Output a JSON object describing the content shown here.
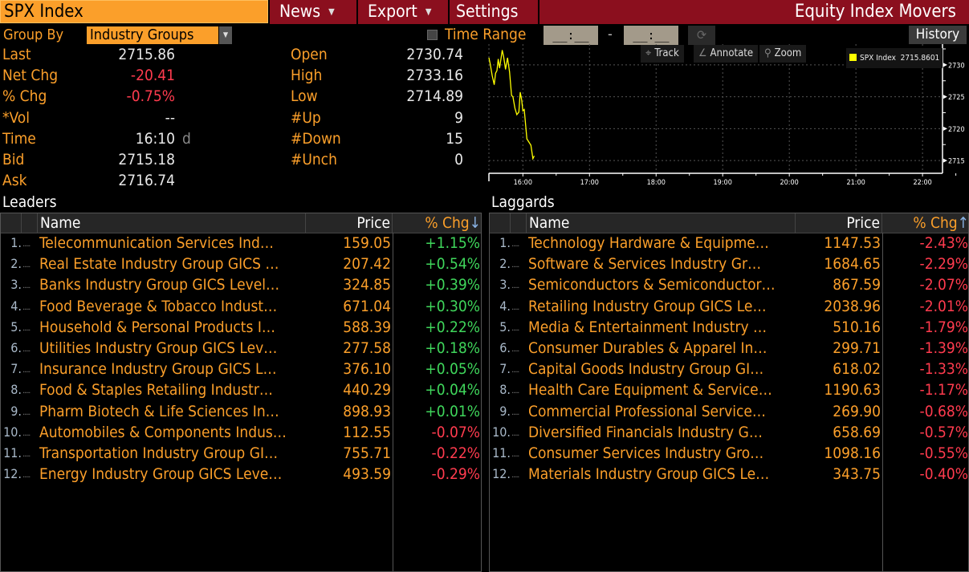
{
  "toolbar": {
    "ticker": "SPX Index",
    "news_label": "News",
    "export_label": "Export",
    "settings_label": "Settings",
    "title": "Equity Index Movers"
  },
  "filters": {
    "group_by_label": "Group By",
    "group_by_value": "Industry Groups",
    "time_range_label": "Time Range",
    "time_range_checked": false,
    "time_from": "__:__",
    "time_separator": "-",
    "time_to": "__:__",
    "history_label": "History"
  },
  "stats_left": [
    {
      "label": "Last",
      "value": "2715.86",
      "tone": "normal"
    },
    {
      "label": "Net Chg",
      "value": "-20.41",
      "tone": "neg"
    },
    {
      "label": "% Chg",
      "value": "-0.75%",
      "tone": "neg"
    },
    {
      "label": "*Vol",
      "value": "--",
      "tone": "normal"
    },
    {
      "label": "Time",
      "value": "16:10",
      "suffix": "d",
      "tone": "normal"
    },
    {
      "label": "Bid",
      "value": "2715.18",
      "tone": "normal"
    },
    {
      "label": "Ask",
      "value": "2716.74",
      "tone": "normal"
    }
  ],
  "stats_right": [
    {
      "label": "Open",
      "value": "2730.74"
    },
    {
      "label": "High",
      "value": "2733.16"
    },
    {
      "label": "Low",
      "value": "2714.89"
    },
    {
      "label": "#Up",
      "value": "9"
    },
    {
      "label": "#Down",
      "value": "15"
    },
    {
      "label": "#Unch",
      "value": "0"
    }
  ],
  "chart_tools": {
    "track": "Track",
    "annotate": "Annotate",
    "zoom": "Zoom"
  },
  "chart_data": {
    "type": "line",
    "title": "",
    "legend": {
      "name": "SPX Index",
      "value": "2715.8601",
      "placement": "top-right"
    },
    "xlabel": "",
    "ylabel": "",
    "x_ticks": [
      "16:00",
      "17:00",
      "18:00",
      "19:00",
      "20:00",
      "21:00",
      "22:00"
    ],
    "x_tick_values": [
      16,
      17,
      18,
      19,
      20,
      21,
      22
    ],
    "xlim": [
      15.49,
      22.3
    ],
    "y_ticks": [
      2715,
      2720,
      2725,
      2730
    ],
    "ylim": [
      2713,
      2733
    ],
    "grid": true,
    "series": [
      {
        "name": "SPX Index",
        "color": "#ffff00",
        "x": [
          15.49,
          15.51,
          15.54,
          15.57,
          15.59,
          15.61,
          15.63,
          15.65,
          15.69,
          15.71,
          15.74,
          15.77,
          15.8,
          15.83,
          15.85,
          15.88,
          15.91,
          15.94,
          15.96,
          15.98,
          16.0,
          16.02,
          16.06,
          16.12,
          16.15,
          16.17
        ],
        "y": [
          2731.1,
          2730.1,
          2728.3,
          2726.9,
          2728.7,
          2729.1,
          2730.9,
          2729.5,
          2732.3,
          2731.3,
          2729.3,
          2731.1,
          2728.9,
          2725.2,
          2725.0,
          2723.2,
          2722.2,
          2722.6,
          2725.7,
          2724.6,
          2722.8,
          2723.0,
          2718.4,
          2717.4,
          2715.3,
          2715.7
        ]
      }
    ]
  },
  "leaders": {
    "title": "Leaders",
    "columns": {
      "name": "Name",
      "price": "Price",
      "chg": "% Chg",
      "sort_icon": "↓"
    },
    "rows": [
      {
        "rank": "1.",
        "name": "Telecommunication Services Ind…",
        "price": "159.05",
        "chg": "+1.15%",
        "tone": "pos"
      },
      {
        "rank": "2.",
        "name": "Real Estate Industry Group GICS …",
        "price": "207.42",
        "chg": "+0.54%",
        "tone": "pos"
      },
      {
        "rank": "3.",
        "name": "Banks Industry Group GICS Level…",
        "price": "324.85",
        "chg": "+0.39%",
        "tone": "pos"
      },
      {
        "rank": "4.",
        "name": "Food Beverage & Tobacco Indust…",
        "price": "671.04",
        "chg": "+0.30%",
        "tone": "pos"
      },
      {
        "rank": "5.",
        "name": "Household & Personal Products I…",
        "price": "588.39",
        "chg": "+0.22%",
        "tone": "pos"
      },
      {
        "rank": "6.",
        "name": "Utilities Industry Group GICS Lev…",
        "price": "277.58",
        "chg": "+0.18%",
        "tone": "pos"
      },
      {
        "rank": "7.",
        "name": "Insurance Industry Group GICS L…",
        "price": "376.10",
        "chg": "+0.05%",
        "tone": "pos"
      },
      {
        "rank": "8.",
        "name": "Food & Staples Retailing Industr…",
        "price": "440.29",
        "chg": "+0.04%",
        "tone": "pos"
      },
      {
        "rank": "9.",
        "name": "Pharm Biotech & Life Sciences In…",
        "price": "898.93",
        "chg": "+0.01%",
        "tone": "pos"
      },
      {
        "rank": "10.",
        "name": "Automobiles & Components Indus…",
        "price": "112.55",
        "chg": "-0.07%",
        "tone": "neg"
      },
      {
        "rank": "11.",
        "name": "Transportation Industry Group GI…",
        "price": "755.71",
        "chg": "-0.22%",
        "tone": "neg"
      },
      {
        "rank": "12.",
        "name": "Energy Industry Group GICS Leve…",
        "price": "493.59",
        "chg": "-0.29%",
        "tone": "neg"
      }
    ]
  },
  "laggards": {
    "title": "Laggards",
    "columns": {
      "name": "Name",
      "price": "Price",
      "chg": "% Chg",
      "sort_icon": "↑"
    },
    "rows": [
      {
        "rank": "1.",
        "name": "Technology Hardware & Equipme…",
        "price": "1147.53",
        "chg": "-2.43%",
        "tone": "neg"
      },
      {
        "rank": "2.",
        "name": "Software & Services Industry Gr…",
        "price": "1684.65",
        "chg": "-2.29%",
        "tone": "neg"
      },
      {
        "rank": "3.",
        "name": "Semiconductors & Semiconductor…",
        "price": "867.59",
        "chg": "-2.07%",
        "tone": "neg"
      },
      {
        "rank": "4.",
        "name": "Retailing Industry Group GICS Le…",
        "price": "2038.96",
        "chg": "-2.01%",
        "tone": "neg"
      },
      {
        "rank": "5.",
        "name": "Media & Entertainment Industry …",
        "price": "510.16",
        "chg": "-1.79%",
        "tone": "neg"
      },
      {
        "rank": "6.",
        "name": "Consumer Durables & Apparel In…",
        "price": "299.71",
        "chg": "-1.39%",
        "tone": "neg"
      },
      {
        "rank": "7.",
        "name": "Capital Goods Industry Group GI…",
        "price": "618.02",
        "chg": "-1.33%",
        "tone": "neg"
      },
      {
        "rank": "8.",
        "name": "Health Care Equipment & Service…",
        "price": "1190.63",
        "chg": "-1.17%",
        "tone": "neg"
      },
      {
        "rank": "9.",
        "name": "Commercial Professional Service…",
        "price": "269.90",
        "chg": "-0.68%",
        "tone": "neg"
      },
      {
        "rank": "10.",
        "name": "Diversified Financials Industry G…",
        "price": "658.69",
        "chg": "-0.57%",
        "tone": "neg"
      },
      {
        "rank": "11.",
        "name": "Consumer Services Industry Gro…",
        "price": "1098.16",
        "chg": "-0.55%",
        "tone": "neg"
      },
      {
        "rank": "12.",
        "name": "Materials Industry Group GICS Le…",
        "price": "343.75",
        "chg": "-0.40%",
        "tone": "neg"
      }
    ]
  },
  "colors": {
    "accent_orange": "#fb9f2a",
    "title_bar": "#8b0f1e",
    "positive": "#3fd65b",
    "negative": "#ff3b4e",
    "chart_line": "#ffff00"
  }
}
